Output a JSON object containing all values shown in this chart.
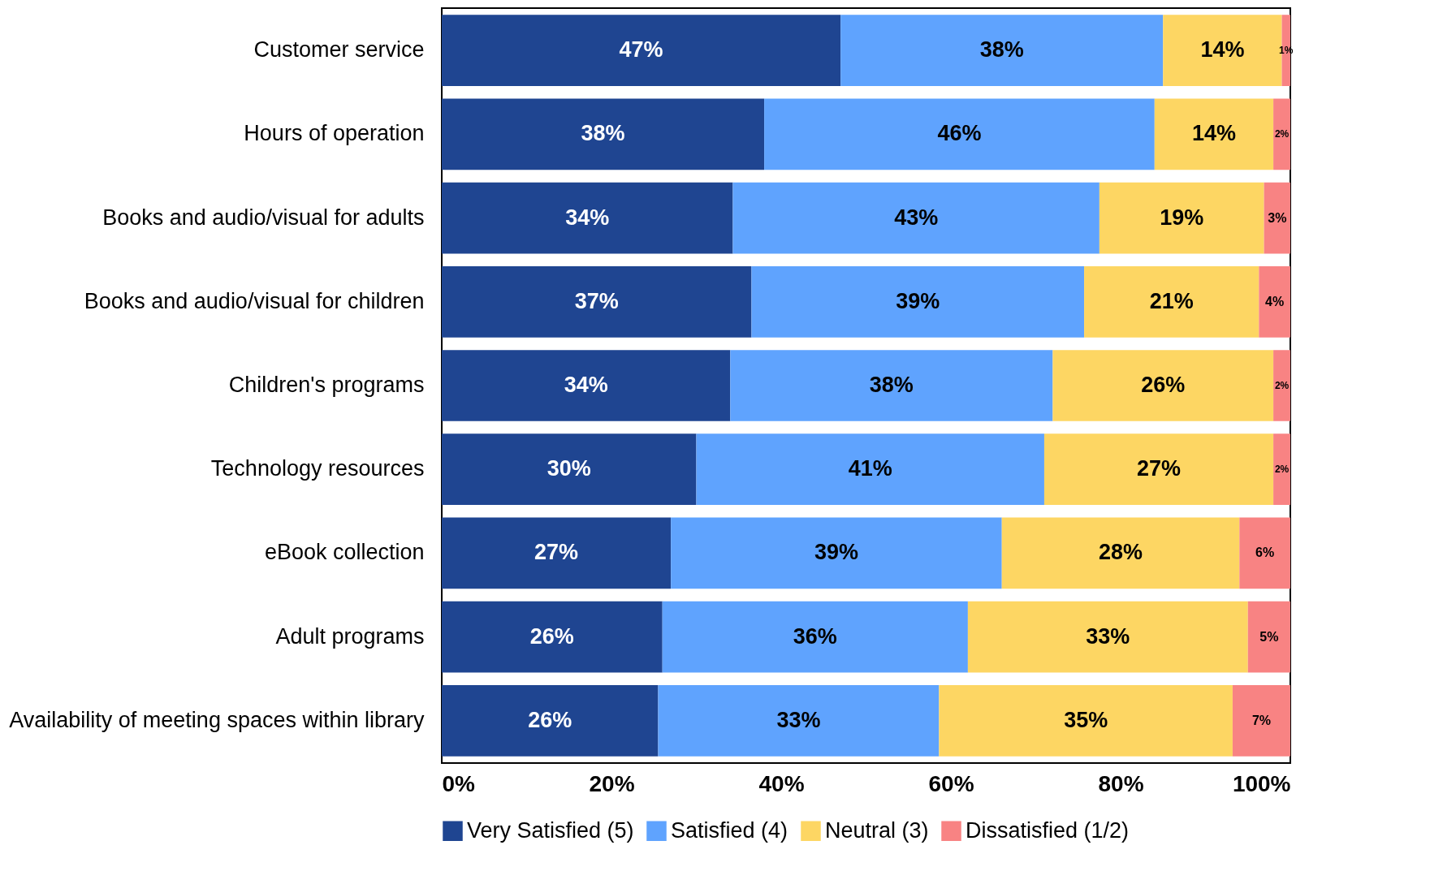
{
  "chart_data": {
    "type": "bar",
    "orientation": "horizontal",
    "stacked": true,
    "legend": "bottom",
    "grid": false,
    "categories": [
      "Customer service",
      "Hours of operation",
      "Books and audio/visual for adults",
      "Books and audio/visual for children",
      "Children's programs",
      "Technology resources",
      "eBook collection",
      "Adult programs",
      "Availability of meeting spaces within library"
    ],
    "xlim": [
      0,
      100
    ],
    "xticks": [
      {
        "value": 0,
        "label": "0%"
      },
      {
        "value": 20,
        "label": "20%"
      },
      {
        "value": 40,
        "label": "40%"
      },
      {
        "value": 60,
        "label": "60%"
      },
      {
        "value": 80,
        "label": "80%"
      },
      {
        "value": 100,
        "label": "100%"
      }
    ],
    "series": [
      {
        "name": "Very Satisfied (5)",
        "color": "#1f4591",
        "values": [
          47,
          38,
          34.3,
          36.5,
          34,
          30,
          27,
          26,
          25.5
        ],
        "value_labels": [
          "47%",
          "38%",
          "34%",
          "37%",
          "34%",
          "30%",
          "27%",
          "26%",
          "26%"
        ]
      },
      {
        "name": "Satisfied (4)",
        "color": "#5fa3fe",
        "values": [
          38,
          46,
          43.2,
          39.2,
          38,
          41,
          39,
          36,
          33.1
        ],
        "value_labels": [
          "38%",
          "46%",
          "43%",
          "39%",
          "38%",
          "41%",
          "39%",
          "36%",
          "33%"
        ]
      },
      {
        "name": "Neutral (3)",
        "color": "#fdd663",
        "values": [
          14,
          14,
          19.4,
          20.6,
          26,
          27,
          28,
          33,
          34.6
        ],
        "value_labels": [
          "14%",
          "14%",
          "19%",
          "21%",
          "26%",
          "27%",
          "28%",
          "33%",
          "35%"
        ]
      },
      {
        "name": "Dissatisfied (1/2)",
        "color": "#f88383",
        "values": [
          1,
          2,
          3.1,
          3.7,
          2,
          2,
          6,
          5,
          6.8
        ],
        "value_labels": [
          "1%",
          "2%",
          "3%",
          "4%",
          "2%",
          "2%",
          "6%",
          "5%",
          "7%"
        ]
      }
    ]
  }
}
